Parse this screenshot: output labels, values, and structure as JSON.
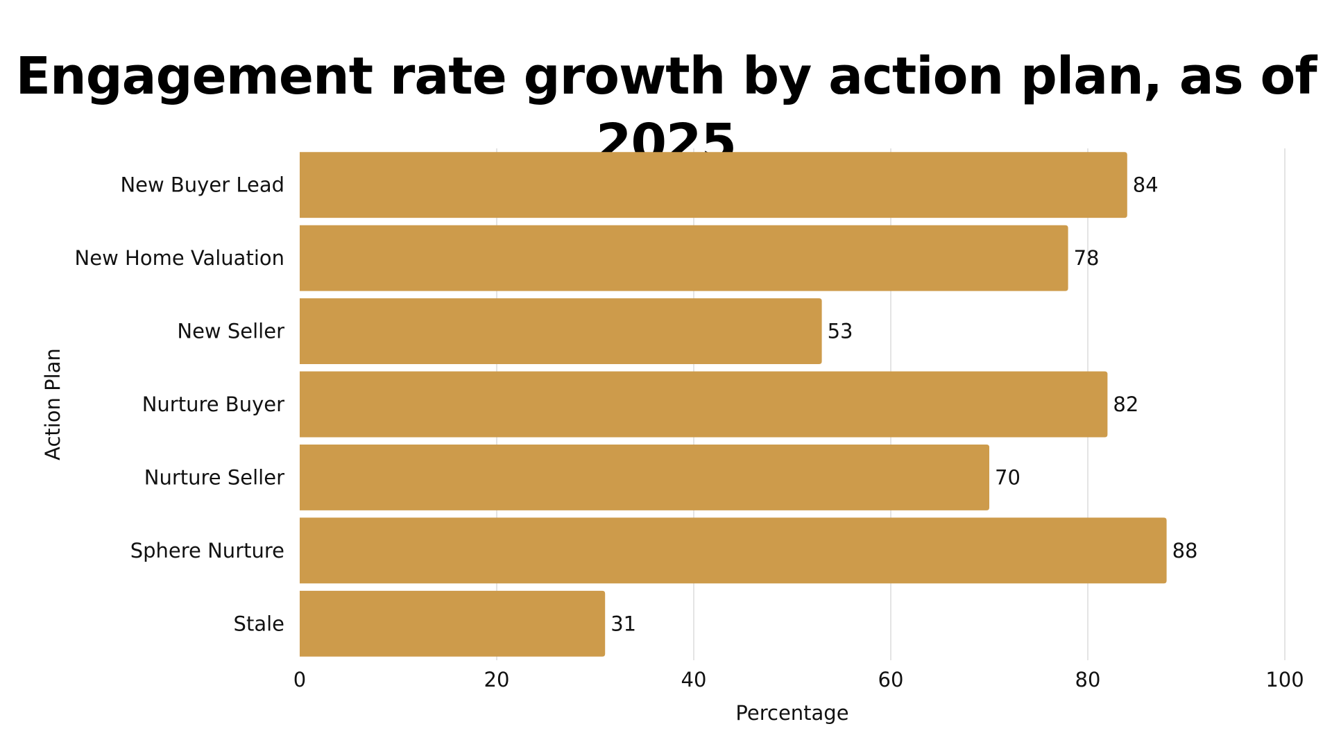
{
  "chart_data": {
    "type": "bar",
    "orientation": "horizontal",
    "title": "Engagement rate growth by action plan, as of 2025",
    "xlabel": "Percentage",
    "ylabel": "Action Plan",
    "categories": [
      "New Buyer Lead",
      "New Home Valuation",
      "New Seller",
      "Nurture Buyer",
      "Nurture Seller",
      "Sphere Nurture",
      "Stale"
    ],
    "values": [
      84,
      78,
      53,
      82,
      70,
      88,
      31
    ],
    "xlim": [
      0,
      100
    ],
    "xticks": [
      0,
      20,
      40,
      60,
      80,
      100
    ],
    "grid": true,
    "legend": "none",
    "bar_color": "#CD9B4B",
    "grid_color": "#DCDCDC"
  }
}
